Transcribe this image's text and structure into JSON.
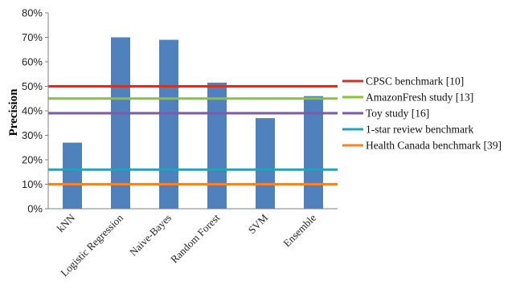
{
  "chart_data": {
    "type": "bar",
    "categories": [
      "kNN",
      "Logistic Regression",
      "Naive-Bayes",
      "Random Forest",
      "SVM",
      "Ensemble"
    ],
    "values": [
      0.27,
      0.7,
      0.69,
      0.515,
      0.37,
      0.46
    ],
    "ylabel": "Precision",
    "ylim": [
      0,
      0.8
    ],
    "yticks": [
      "0%",
      "10%",
      "20%",
      "30%",
      "40%",
      "50%",
      "60%",
      "70%",
      "80%"
    ],
    "grid": false,
    "bar_color": "#4f81bd",
    "legend_position": "right",
    "benchmarks": [
      {
        "name": "CPSC benchmark [10]",
        "value": 0.5,
        "color": "#c0392b"
      },
      {
        "name": "AmazonFresh study [13]",
        "value": 0.45,
        "color": "#8cbf3f"
      },
      {
        "name": "Toy study [16]",
        "value": 0.39,
        "color": "#7b5aa6"
      },
      {
        "name": "1-star review benchmark",
        "value": 0.16,
        "color": "#27a1b8"
      },
      {
        "name": "Health Canada benchmark [39]",
        "value": 0.1,
        "color": "#f0852d"
      }
    ]
  }
}
